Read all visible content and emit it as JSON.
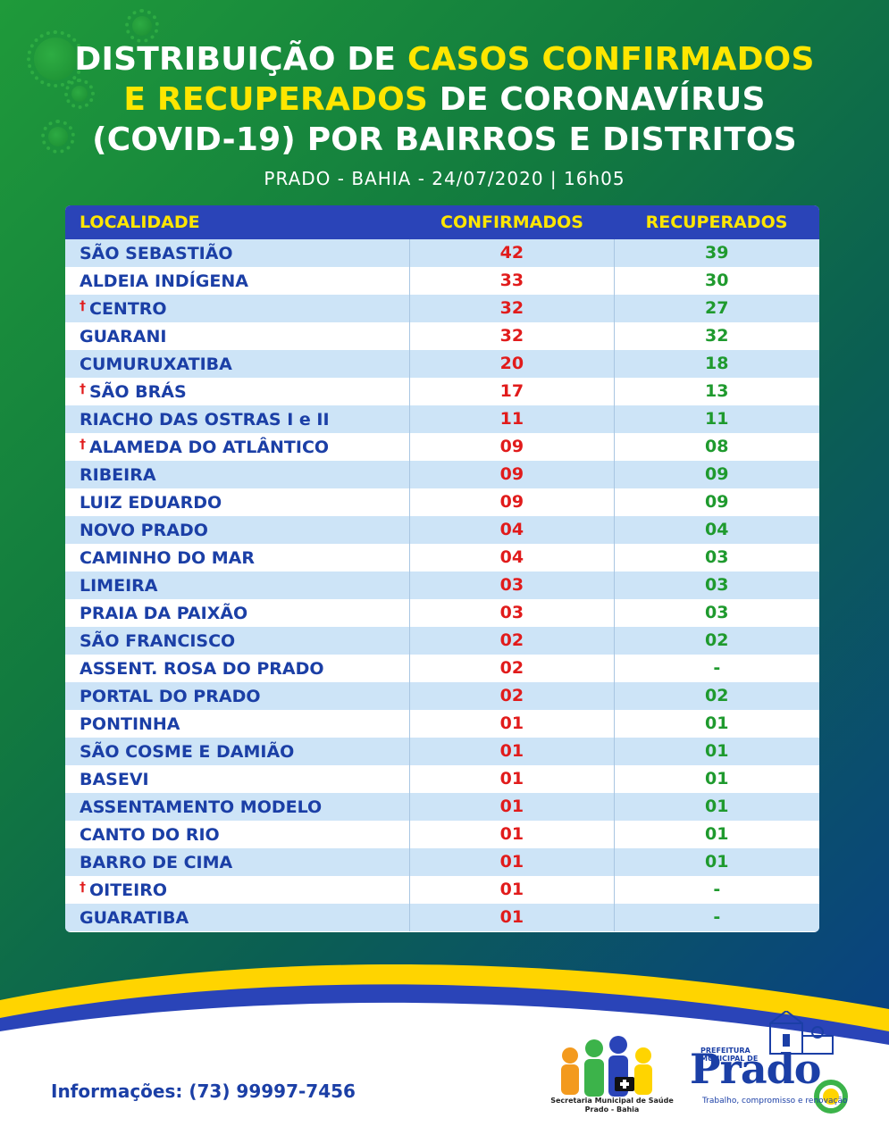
{
  "header": {
    "title_line1_a": "DISTRIBUIÇÃO DE ",
    "title_line1_b": "CASOS CONFIRMADOS",
    "title_line2_a": "E RECUPERADOS",
    "title_line2_b": " DE CORONAVÍRUS",
    "title_line3": "(COVID-19) POR BAIRROS E DISTRITOS",
    "subtitle": "PRADO - BAHIA - 24/07/2020 | 16h05"
  },
  "table": {
    "headers": [
      "LOCALIDADE",
      "CONFIRMADOS",
      "RECUPERADOS"
    ],
    "rows": [
      {
        "cross": "",
        "name": "SÃO SEBASTIÃO",
        "confirmed": "42",
        "recovered": "39"
      },
      {
        "cross": "",
        "name": "ALDEIA INDÍGENA",
        "confirmed": "33",
        "recovered": "30"
      },
      {
        "cross": "†",
        "name": "CENTRO",
        "confirmed": "32",
        "recovered": "27"
      },
      {
        "cross": "",
        "name": "GUARANI",
        "confirmed": "32",
        "recovered": "32"
      },
      {
        "cross": "",
        "name": "CUMURUXATIBA",
        "confirmed": "20",
        "recovered": "18"
      },
      {
        "cross": "†",
        "name": "SÃO BRÁS",
        "confirmed": "17",
        "recovered": "13"
      },
      {
        "cross": "",
        "name": "RIACHO DAS OSTRAS I e II",
        "confirmed": "11",
        "recovered": "11"
      },
      {
        "cross": "†",
        "name": "ALAMEDA DO ATLÂNTICO",
        "confirmed": "09",
        "recovered": "08"
      },
      {
        "cross": "",
        "name": "RIBEIRA",
        "confirmed": "09",
        "recovered": "09"
      },
      {
        "cross": "",
        "name": "LUIZ EDUARDO",
        "confirmed": "09",
        "recovered": "09"
      },
      {
        "cross": "",
        "name": "NOVO PRADO",
        "confirmed": "04",
        "recovered": "04"
      },
      {
        "cross": "",
        "name": "CAMINHO DO MAR",
        "confirmed": "04",
        "recovered": "03"
      },
      {
        "cross": "",
        "name": "LIMEIRA",
        "confirmed": "03",
        "recovered": "03"
      },
      {
        "cross": "",
        "name": "PRAIA DA PAIXÃO",
        "confirmed": "03",
        "recovered": "03"
      },
      {
        "cross": "",
        "name": "SÃO FRANCISCO",
        "confirmed": "02",
        "recovered": "02"
      },
      {
        "cross": "",
        "name": "ASSENT. ROSA DO PRADO",
        "confirmed": "02",
        "recovered": "-"
      },
      {
        "cross": "",
        "name": "PORTAL DO PRADO",
        "confirmed": "02",
        "recovered": "02"
      },
      {
        "cross": "",
        "name": "PONTINHA",
        "confirmed": "01",
        "recovered": "01"
      },
      {
        "cross": "",
        "name": "SÃO COSME E DAMIÃO",
        "confirmed": "01",
        "recovered": "01"
      },
      {
        "cross": "",
        "name": "BASEVI",
        "confirmed": "01",
        "recovered": "01"
      },
      {
        "cross": "",
        "name": "ASSENTAMENTO MODELO",
        "confirmed": "01",
        "recovered": "01"
      },
      {
        "cross": "",
        "name": "CANTO DO RIO",
        "confirmed": "01",
        "recovered": "01"
      },
      {
        "cross": "",
        "name": "BARRO DE CIMA",
        "confirmed": "01",
        "recovered": "01"
      },
      {
        "cross": "†",
        "name": "OITEIRO",
        "confirmed": "01",
        "recovered": "-"
      },
      {
        "cross": "",
        "name": "GUARATIBA",
        "confirmed": "01",
        "recovered": "-"
      }
    ]
  },
  "footer": {
    "info": "Informações: (73) 99997-7456",
    "sms_logo_line1": "Secretaria Municipal de Saúde",
    "sms_logo_line2": "Prado - Bahia",
    "prado_pref_line1": "PREFEITURA",
    "prado_pref_line2": "MUNICIPAL DE",
    "prado_word": "Prado",
    "prado_slogan": "Trabalho, compromisso e renovação"
  },
  "colors": {
    "yellow": "#ffe600",
    "header_blue": "#2a44b8",
    "text_blue": "#1b3fa6",
    "red": "#e11b1b",
    "green": "#1f9a2e"
  }
}
